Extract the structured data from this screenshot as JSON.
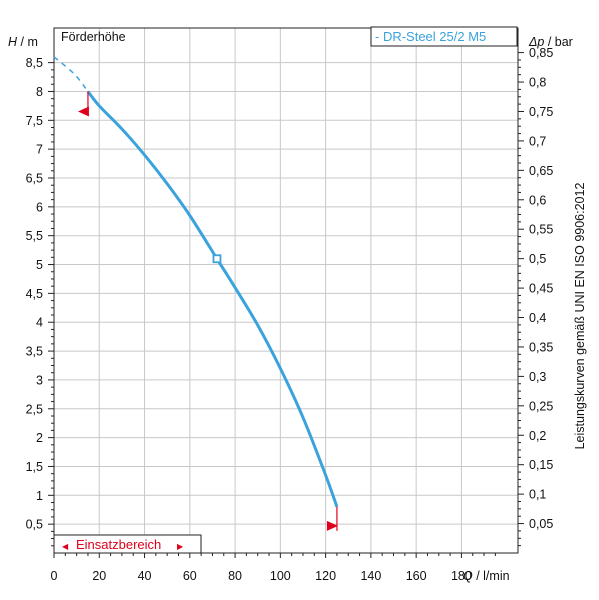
{
  "chart_data": {
    "type": "line",
    "title": "Förderhöhe",
    "legend": "- DR-Steel 25/2 M5",
    "right_title": "Leistungskurven gemäß UNI EN ISO 9906:2012",
    "x_axis": {
      "label_q": "Q",
      "label_unit": " / l/min",
      "range": [
        0,
        205
      ],
      "ticks": [
        0,
        20,
        40,
        60,
        80,
        100,
        120,
        140,
        160,
        180
      ],
      "tick_labels": [
        "0",
        "20",
        "40",
        "60",
        "80",
        "100",
        "120",
        "140",
        "160",
        "180"
      ]
    },
    "y_axis_left": {
      "label_h": "H",
      "label_unit": " / m",
      "range": [
        0,
        9.1
      ],
      "ticks": [
        0.5,
        1,
        1.5,
        2,
        2.5,
        3,
        3.5,
        4,
        4.5,
        5,
        5.5,
        6,
        6.5,
        7,
        7.5,
        8,
        8.5
      ],
      "tick_labels": [
        "0,5",
        "1",
        "1,5",
        "2",
        "2,5",
        "3",
        "3,5",
        "4",
        "4,5",
        "5",
        "5,5",
        "6",
        "6,5",
        "7",
        "7,5",
        "8",
        "8,5"
      ]
    },
    "y_axis_right": {
      "label_dp": "Δp",
      "label_unit": " / bar",
      "range": [
        0,
        0.8918
      ],
      "ticks": [
        0.05,
        0.1,
        0.15,
        0.2,
        0.25,
        0.3,
        0.35,
        0.4,
        0.45,
        0.5,
        0.55,
        0.6,
        0.65,
        0.7,
        0.75,
        0.8,
        0.85
      ],
      "tick_labels": [
        "0,05",
        "0,1",
        "0,15",
        "0,2",
        "0,25",
        "0,3",
        "0,35",
        "0,4",
        "0,45",
        "0,5",
        "0,55",
        "0,6",
        "0,65",
        "0,7",
        "0,75",
        "0,8",
        "0,85"
      ]
    },
    "series": [
      {
        "color": "#3aa2dc",
        "dashed_x": [
          0,
          9,
          15
        ],
        "dashed_y": [
          8.6,
          8.3,
          8.0
        ],
        "x": [
          15,
          20,
          30,
          40,
          50,
          60,
          72,
          80,
          90,
          100,
          110,
          120,
          125
        ],
        "y": [
          8.0,
          7.75,
          7.35,
          6.9,
          6.4,
          5.85,
          5.1,
          4.6,
          3.95,
          3.2,
          2.35,
          1.35,
          0.8
        ]
      }
    ],
    "operating_point": {
      "x": 72,
      "y": 5.1
    },
    "operating_range": {
      "label": "Einsatzbereich",
      "x_min": 15,
      "x_max": 125,
      "color": "#e0001b"
    }
  }
}
